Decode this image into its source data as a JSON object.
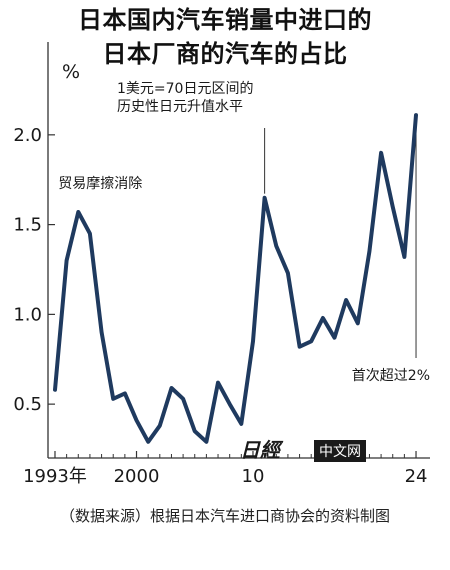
{
  "title_lines": [
    "日本国内汽车销量中进口的",
    "日本厂商的汽车的占比"
  ],
  "colors": {
    "line": "#1f3a5f",
    "axis": "#333333",
    "text": "#1a1a1a",
    "watermark_bg": "#1a1a1a",
    "watermark_text": "#ffffff"
  },
  "chart_data": {
    "type": "line",
    "title": "日本国内汽车销量中进口的日本厂商的汽车的占比",
    "ylabel": "%",
    "xlabel": "",
    "ylim": [
      0.2,
      2.35
    ],
    "yticks": [
      0.5,
      1.0,
      1.5,
      2.0
    ],
    "ytick_labels": [
      "0.5",
      "1.0",
      "1.5",
      "2.0"
    ],
    "xticks": [
      1993,
      2000,
      2010,
      2024
    ],
    "xtick_labels": [
      "1993年",
      "2000",
      "10",
      "24"
    ],
    "grid": false,
    "series": [
      {
        "x": [
          1993,
          1994,
          1995,
          1996,
          1997,
          1998,
          1999,
          2000,
          2001,
          2002,
          2003,
          2004,
          2005,
          2006,
          2007,
          2008,
          2009,
          2010,
          2011,
          2012,
          2013,
          2014,
          2015,
          2016,
          2017,
          2018,
          2019,
          2020,
          2021,
          2022,
          2023,
          2024
        ],
        "y": [
          0.58,
          1.3,
          1.57,
          1.45,
          0.9,
          0.53,
          0.56,
          0.41,
          0.29,
          0.38,
          0.59,
          0.53,
          0.35,
          0.29,
          0.62,
          0.5,
          0.39,
          0.85,
          1.65,
          1.38,
          1.23,
          0.82,
          0.85,
          0.98,
          0.87,
          1.08,
          0.95,
          1.35,
          1.9,
          1.6,
          1.32,
          2.11
        ]
      }
    ],
    "annotations": [
      {
        "id": "trade_friction",
        "text": "贸易摩擦消除",
        "x": 1995,
        "y": 1.57
      },
      {
        "id": "yen_70",
        "text_lines": [
          "1美元=70日元区间的",
          "历史性日元升值水平"
        ],
        "x": 2011,
        "y": 1.65
      },
      {
        "id": "first_over_2",
        "text": "首次超过2%",
        "x": 2024,
        "y": 2.11
      }
    ]
  },
  "watermark": {
    "logo_text": "日經",
    "label": "中文网"
  },
  "footer": "（数据来源）根据日本汽车进口商协会的资料制图"
}
